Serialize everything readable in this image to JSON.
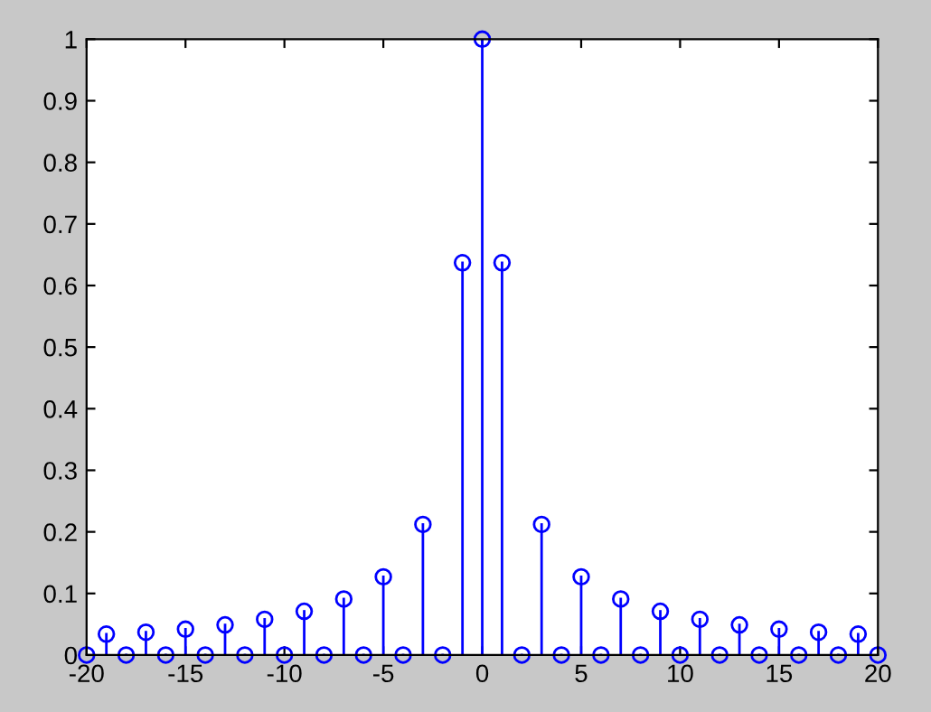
{
  "chart_data": {
    "type": "lollipop",
    "x": [
      -20,
      -19,
      -18,
      -17,
      -16,
      -15,
      -14,
      -13,
      -12,
      -11,
      -10,
      -9,
      -8,
      -7,
      -6,
      -5,
      -4,
      -3,
      -2,
      -1,
      0,
      1,
      2,
      3,
      4,
      5,
      6,
      7,
      8,
      9,
      10,
      11,
      12,
      13,
      14,
      15,
      16,
      17,
      18,
      19,
      20
    ],
    "series": [
      {
        "color": "#0000ff",
        "values": [
          0,
          0.034,
          0,
          0.037,
          0,
          0.042,
          0,
          0.049,
          0,
          0.058,
          0,
          0.071,
          0,
          0.091,
          0,
          0.127,
          0,
          0.212,
          0,
          0.637,
          1,
          0.637,
          0,
          0.212,
          0,
          0.127,
          0,
          0.091,
          0,
          0.071,
          0,
          0.058,
          0,
          0.049,
          0,
          0.042,
          0,
          0.037,
          0,
          0.034,
          0
        ]
      }
    ],
    "marker": "circle",
    "xlim": [
      -20,
      20
    ],
    "xticks": [
      -20,
      -15,
      -10,
      -5,
      0,
      5,
      10,
      15,
      20
    ],
    "ylim": [
      0,
      1
    ],
    "yticks": [
      0,
      0.1,
      0.2,
      0.3,
      0.4,
      0.5,
      0.6,
      0.7,
      0.8,
      0.9,
      1
    ],
    "grid": false
  }
}
